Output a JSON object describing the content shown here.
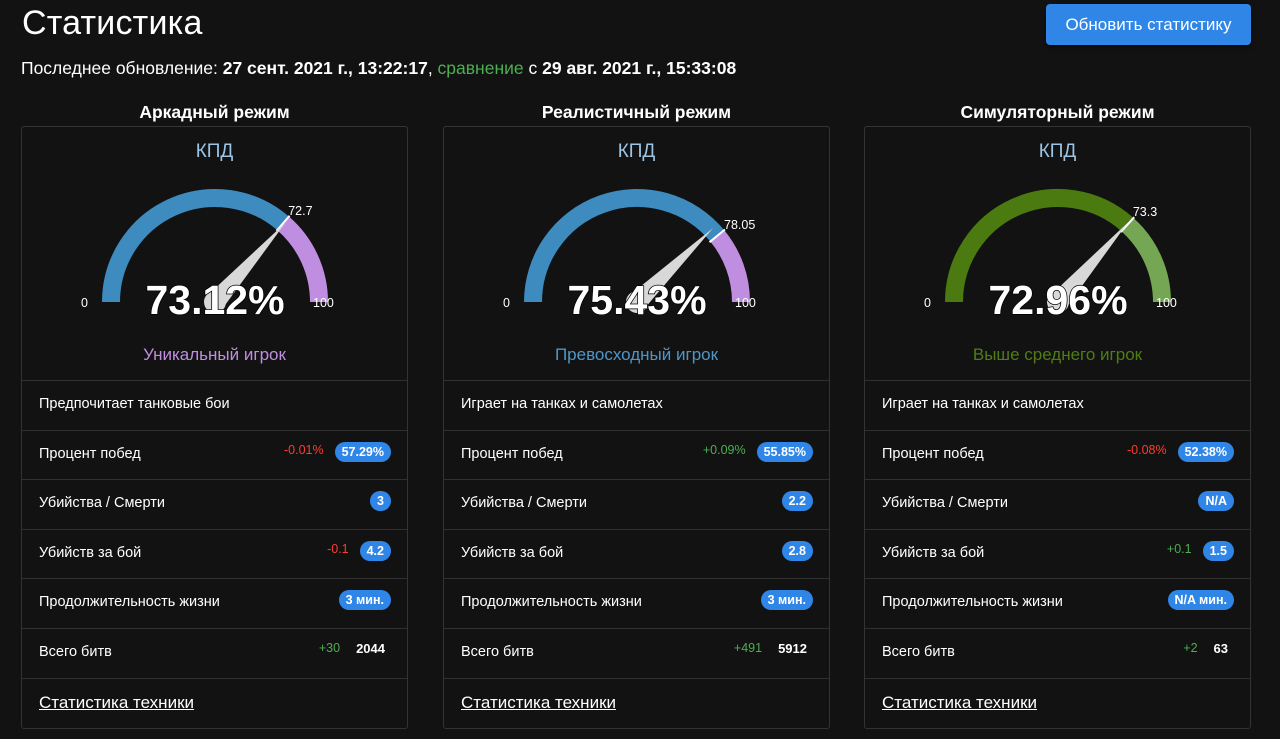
{
  "header": {
    "title": "Статистика",
    "refresh_button": "Обновить статистику",
    "update_prefix": "Последнее обновление: ",
    "update_date": "27 сент. 2021 г., 13:22:17",
    "separator": ", ",
    "compare_word": "сравнение",
    "compare_prefix": " с ",
    "compare_date": "29 авг. 2021 г., 15:33:08"
  },
  "colors": {
    "accent_blue": "#2f86e6",
    "negative": "#ff3b30",
    "positive": "#4caf50",
    "unique": "#c08ee0",
    "excellent": "#4f96c8",
    "above_average": "#4f7d14"
  },
  "modes": [
    {
      "title": "Аркадный режим",
      "gauge_label": "КПД",
      "gauge_value": "73.12%",
      "gauge_threshold": "72.7",
      "gauge_min": "0",
      "gauge_max": "100",
      "gauge_value_num": 73.12,
      "gauge_threshold_num": 72.7,
      "arc_main_color": "#3d8bbf",
      "arc_rest_color": "#c08ee0",
      "rating": "Уникальный игрок",
      "rating_color": "#c08ee0",
      "preference": "Предпочитает танковые бои",
      "stats": {
        "win_rate": {
          "label": "Процент побед",
          "delta": "-0.01%",
          "delta_sign": "neg",
          "value": "57.29%"
        },
        "kd": {
          "label": "Убийства / Смерти",
          "delta": "",
          "delta_sign": "",
          "value": "3"
        },
        "kills_per_battle": {
          "label": "Убийств за бой",
          "delta": "-0.1",
          "delta_sign": "neg",
          "value": "4.2"
        },
        "lifetime": {
          "label": "Продолжительность жизни",
          "delta": "",
          "delta_sign": "",
          "value": "3 мин."
        },
        "total_battles": {
          "label": "Всего битв",
          "delta": "+30",
          "delta_sign": "pos",
          "value": "2044"
        }
      },
      "link": "Статистика техники"
    },
    {
      "title": "Реалистичный режим",
      "gauge_label": "КПД",
      "gauge_value": "75.43%",
      "gauge_threshold": "78.05",
      "gauge_min": "0",
      "gauge_max": "100",
      "gauge_value_num": 75.43,
      "gauge_threshold_num": 78.05,
      "arc_main_color": "#3d8bbf",
      "arc_rest_color": "#c08ee0",
      "rating": "Превосходный игрок",
      "rating_color": "#4f96c8",
      "preference": "Играет на танках и самолетах",
      "stats": {
        "win_rate": {
          "label": "Процент побед",
          "delta": "+0.09%",
          "delta_sign": "pos",
          "value": "55.85%"
        },
        "kd": {
          "label": "Убийства / Смерти",
          "delta": "",
          "delta_sign": "",
          "value": "2.2"
        },
        "kills_per_battle": {
          "label": "Убийств за бой",
          "delta": "",
          "delta_sign": "",
          "value": "2.8"
        },
        "lifetime": {
          "label": "Продолжительность жизни",
          "delta": "",
          "delta_sign": "",
          "value": "3 мин."
        },
        "total_battles": {
          "label": "Всего битв",
          "delta": "+491",
          "delta_sign": "pos",
          "value": "5912"
        }
      },
      "link": "Статистика техники"
    },
    {
      "title": "Симуляторный режим",
      "gauge_label": "КПД",
      "gauge_value": "72.96%",
      "gauge_threshold": "73.3",
      "gauge_min": "0",
      "gauge_max": "100",
      "gauge_value_num": 72.96,
      "gauge_threshold_num": 73.3,
      "arc_main_color": "#4a7a10",
      "arc_rest_color": "#74a653",
      "rating": "Выше среднего игрок",
      "rating_color": "#4f7d14",
      "preference": "Играет на танках и самолетах",
      "stats": {
        "win_rate": {
          "label": "Процент побед",
          "delta": "-0.08%",
          "delta_sign": "neg",
          "value": "52.38%"
        },
        "kd": {
          "label": "Убийства / Смерти",
          "delta": "",
          "delta_sign": "",
          "value": "N/A"
        },
        "kills_per_battle": {
          "label": "Убийств за бой",
          "delta": "+0.1",
          "delta_sign": "pos",
          "value": "1.5"
        },
        "lifetime": {
          "label": "Продолжительность жизни",
          "delta": "",
          "delta_sign": "",
          "value": "N/A мин."
        },
        "total_battles": {
          "label": "Всего битв",
          "delta": "+2",
          "delta_sign": "pos",
          "value": "63"
        }
      },
      "link": "Статистика техники"
    }
  ]
}
